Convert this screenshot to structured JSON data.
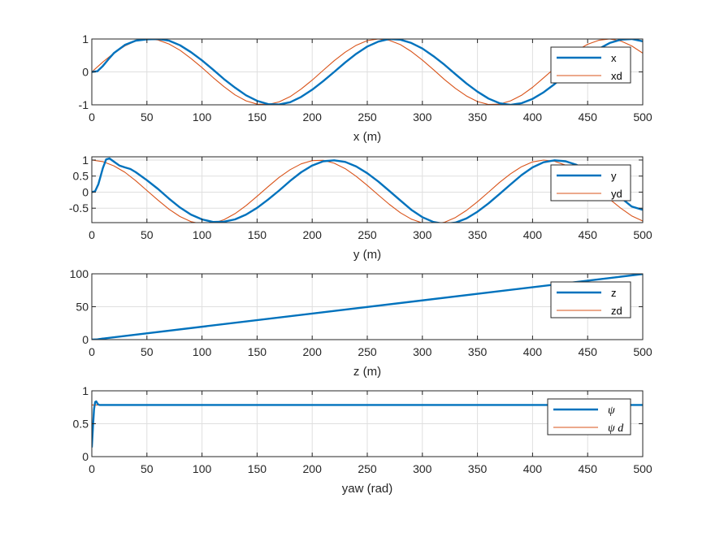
{
  "colors": {
    "actual": "#0072BD",
    "desired": "#D95319",
    "grid": "#DFDFDF",
    "axes": "#262626"
  },
  "chart_data": [
    {
      "type": "line",
      "xlabel": "x (m)",
      "ylabel": "",
      "xlim": [
        0,
        500
      ],
      "ylim": [
        -1,
        1
      ],
      "xticks": [
        0,
        50,
        100,
        150,
        200,
        250,
        300,
        350,
        400,
        450,
        500
      ],
      "yticks": [
        -1,
        0,
        1
      ],
      "ytick_labels": [
        "-1",
        "0",
        "1"
      ],
      "grid": true,
      "legend_position": "top-right",
      "series": [
        {
          "name": "x",
          "x": [
            0,
            5,
            10,
            15,
            20,
            30,
            40,
            50,
            60,
            70,
            80,
            90,
            100,
            110,
            120,
            130,
            140,
            150,
            160,
            170,
            180,
            190,
            200,
            210,
            220,
            230,
            240,
            250,
            260,
            270,
            280,
            290,
            300,
            310,
            320,
            330,
            340,
            350,
            360,
            370,
            380,
            390,
            400,
            410,
            420,
            430,
            440,
            450,
            460,
            470,
            480,
            490,
            500
          ],
          "y": [
            0,
            0.02,
            0.18,
            0.38,
            0.57,
            0.82,
            0.95,
            0.99,
            1.0,
            0.95,
            0.81,
            0.6,
            0.35,
            0.07,
            -0.22,
            -0.48,
            -0.71,
            -0.88,
            -0.98,
            -0.99,
            -0.92,
            -0.76,
            -0.54,
            -0.28,
            0.0,
            0.29,
            0.55,
            0.77,
            0.92,
            1.0,
            0.98,
            0.88,
            0.71,
            0.48,
            0.22,
            -0.07,
            -0.35,
            -0.6,
            -0.81,
            -0.95,
            -1.0,
            -0.95,
            -0.82,
            -0.62,
            -0.37,
            -0.09,
            0.2,
            0.47,
            0.7,
            0.88,
            0.98,
            1.0,
            0.93
          ]
        },
        {
          "name": "xd",
          "x": [
            0,
            10,
            20,
            30,
            40,
            50,
            60,
            70,
            80,
            90,
            100,
            110,
            120,
            130,
            140,
            150,
            160,
            170,
            180,
            190,
            200,
            210,
            220,
            230,
            240,
            250,
            260,
            270,
            280,
            290,
            300,
            310,
            320,
            330,
            340,
            350,
            360,
            370,
            380,
            390,
            400,
            410,
            420,
            430,
            440,
            450,
            460,
            470,
            480,
            490,
            500
          ],
          "y": [
            0.0,
            0.3,
            0.57,
            0.79,
            0.94,
            1.0,
            0.97,
            0.85,
            0.66,
            0.41,
            0.13,
            -0.17,
            -0.45,
            -0.7,
            -0.88,
            -0.98,
            -0.99,
            -0.91,
            -0.75,
            -0.52,
            -0.25,
            0.05,
            0.34,
            0.6,
            0.81,
            0.95,
            1.0,
            0.96,
            0.83,
            0.62,
            0.36,
            0.07,
            -0.23,
            -0.5,
            -0.73,
            -0.9,
            -0.99,
            -0.98,
            -0.88,
            -0.71,
            -0.47,
            -0.18,
            0.11,
            0.4,
            0.65,
            0.84,
            0.96,
            1.0,
            0.94,
            0.79,
            0.57
          ]
        }
      ]
    },
    {
      "type": "line",
      "xlabel": "y (m)",
      "ylabel": "",
      "xlim": [
        0,
        500
      ],
      "ylim": [
        -0.95,
        1.1
      ],
      "xticks": [
        0,
        50,
        100,
        150,
        200,
        250,
        300,
        350,
        400,
        450,
        500
      ],
      "yticks": [
        -0.5,
        0,
        0.5,
        1
      ],
      "ytick_labels": [
        "-0.5",
        "0",
        "0.5",
        "1"
      ],
      "grid": true,
      "legend_position": "top-right",
      "series": [
        {
          "name": "y",
          "x": [
            0,
            3,
            6,
            10,
            13,
            16,
            20,
            25,
            30,
            35,
            40,
            50,
            60,
            70,
            80,
            90,
            100,
            110,
            120,
            130,
            140,
            150,
            160,
            170,
            180,
            190,
            200,
            210,
            220,
            230,
            240,
            250,
            260,
            270,
            280,
            290,
            300,
            310,
            320,
            330,
            340,
            350,
            360,
            370,
            380,
            390,
            400,
            410,
            420,
            430,
            440,
            450,
            460,
            470,
            480,
            490,
            500
          ],
          "y": [
            0,
            0.03,
            0.25,
            0.75,
            1.02,
            1.05,
            0.95,
            0.83,
            0.77,
            0.72,
            0.62,
            0.37,
            0.1,
            -0.2,
            -0.48,
            -0.7,
            -0.85,
            -0.93,
            -0.92,
            -0.85,
            -0.7,
            -0.49,
            -0.23,
            0.05,
            0.35,
            0.62,
            0.83,
            0.96,
            0.99,
            0.94,
            0.8,
            0.59,
            0.33,
            0.04,
            -0.26,
            -0.55,
            -0.78,
            -0.93,
            -0.99,
            -0.95,
            -0.82,
            -0.61,
            -0.35,
            -0.06,
            0.24,
            0.53,
            0.77,
            0.93,
            0.99,
            0.96,
            0.85,
            0.66,
            0.41,
            0.13,
            -0.17,
            -0.45,
            -0.55
          ]
        },
        {
          "name": "yd",
          "x": [
            0,
            10,
            20,
            30,
            40,
            50,
            60,
            70,
            80,
            90,
            100,
            110,
            120,
            130,
            140,
            150,
            160,
            170,
            180,
            190,
            200,
            210,
            220,
            230,
            240,
            250,
            260,
            270,
            280,
            290,
            300,
            310,
            320,
            330,
            340,
            350,
            360,
            370,
            380,
            390,
            400,
            410,
            420,
            430,
            440,
            450,
            460,
            470,
            480,
            490,
            500
          ],
          "y": [
            1.0,
            0.95,
            0.82,
            0.62,
            0.35,
            0.05,
            -0.25,
            -0.53,
            -0.76,
            -0.92,
            -0.99,
            -0.97,
            -0.86,
            -0.67,
            -0.42,
            -0.13,
            0.17,
            0.46,
            0.7,
            0.88,
            0.98,
            0.99,
            0.9,
            0.73,
            0.49,
            0.21,
            -0.09,
            -0.38,
            -0.64,
            -0.84,
            -0.96,
            -1.0,
            -0.94,
            -0.79,
            -0.57,
            -0.3,
            0.0,
            0.3,
            0.57,
            0.79,
            0.94,
            1.0,
            0.96,
            0.84,
            0.64,
            0.38,
            0.08,
            -0.22,
            -0.5,
            -0.74,
            -0.9
          ]
        }
      ]
    },
    {
      "type": "line",
      "xlabel": "z (m)",
      "ylabel": "",
      "xlim": [
        0,
        500
      ],
      "ylim": [
        0,
        100
      ],
      "xticks": [
        0,
        50,
        100,
        150,
        200,
        250,
        300,
        350,
        400,
        450,
        500
      ],
      "yticks": [
        0,
        50,
        100
      ],
      "ytick_labels": [
        "0",
        "50",
        "100"
      ],
      "grid": true,
      "legend_position": "top-right",
      "series": [
        {
          "name": "z",
          "x": [
            0,
            5,
            10,
            500
          ],
          "y": [
            0,
            0.4,
            1.6,
            99.6
          ]
        },
        {
          "name": "zd",
          "x": [
            0,
            500
          ],
          "y": [
            0,
            100
          ]
        }
      ]
    },
    {
      "type": "line",
      "xlabel": "yaw (rad)",
      "ylabel": "",
      "xlim": [
        0,
        500
      ],
      "ylim": [
        0,
        1
      ],
      "xticks": [
        0,
        50,
        100,
        150,
        200,
        250,
        300,
        350,
        400,
        450,
        500
      ],
      "yticks": [
        0,
        0.5,
        1
      ],
      "ytick_labels": [
        "0",
        "0.5",
        "1"
      ],
      "grid": true,
      "legend_position": "top-right",
      "series": [
        {
          "name": "ψ",
          "x": [
            0,
            1,
            2,
            3,
            4,
            5,
            6,
            7,
            8,
            9,
            10,
            500
          ],
          "y": [
            0.14,
            0.45,
            0.72,
            0.83,
            0.84,
            0.81,
            0.79,
            0.785,
            0.785,
            0.785,
            0.785,
            0.785
          ]
        },
        {
          "name": "ψ d",
          "x": [
            0,
            500
          ],
          "y": [
            0.785,
            0.785
          ]
        }
      ]
    }
  ],
  "legend_labels": [
    [
      "x",
      "xd"
    ],
    [
      "y",
      "yd"
    ],
    [
      "z",
      "zd"
    ],
    [
      "ψ",
      "ψ d"
    ]
  ]
}
